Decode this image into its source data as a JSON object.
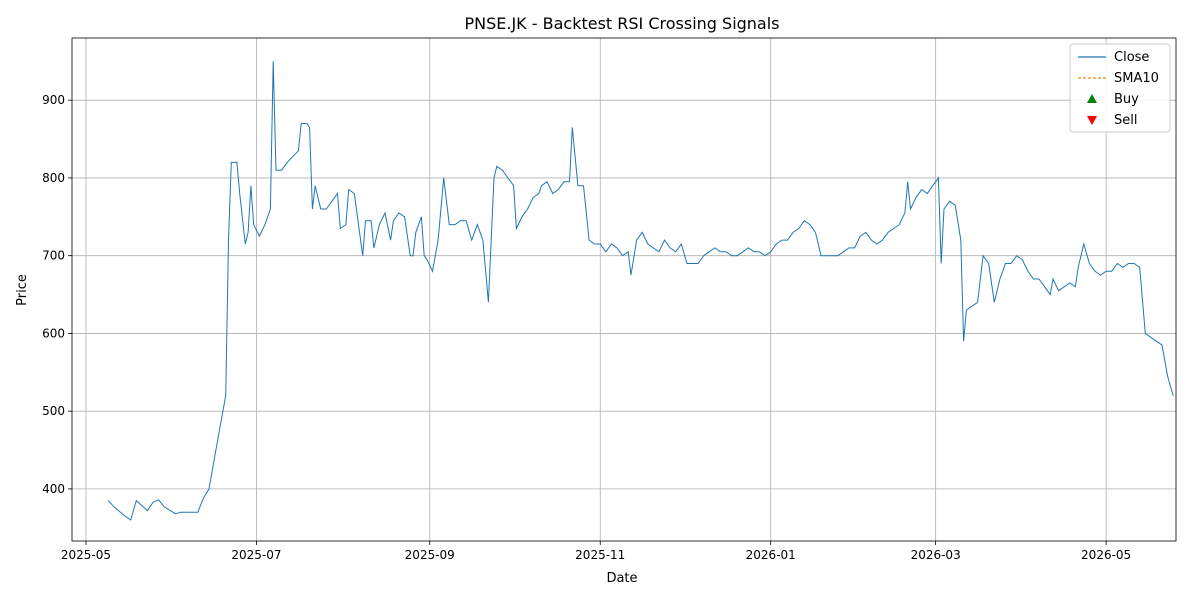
{
  "chart_data": {
    "type": "line",
    "title": "PNSE.JK - Backtest RSI Crossing Signals",
    "xlabel": "Date",
    "ylabel": "Price",
    "xlim": [
      "2025-04-26",
      "2026-05-26"
    ],
    "ylim": [
      333,
      980
    ],
    "yticks": [
      400,
      500,
      600,
      700,
      800,
      900
    ],
    "xticks": [
      "2025-05-01",
      "2025-07-01",
      "2025-09-01",
      "2025-11-01",
      "2026-01-01",
      "2026-03-01",
      "2026-05-01"
    ],
    "xtick_labels": [
      "2025-05",
      "2025-07",
      "2025-09",
      "2025-11",
      "2026-01",
      "2026-03",
      "2026-05"
    ],
    "grid": true,
    "legend": {
      "position": "top-right",
      "entries": [
        {
          "name": "Close",
          "kind": "line",
          "color": "#1f77b4"
        },
        {
          "name": "SMA10",
          "kind": "dashed",
          "color": "#ff7f0e"
        },
        {
          "name": "Buy",
          "kind": "marker-up",
          "color": "#008000"
        },
        {
          "name": "Sell",
          "kind": "marker-down",
          "color": "#ff0000"
        }
      ]
    },
    "series": [
      {
        "name": "Close",
        "color": "#1f77b4",
        "points": [
          [
            "2025-05-09",
            385
          ],
          [
            "2025-05-11",
            377
          ],
          [
            "2025-05-15",
            365
          ],
          [
            "2025-05-17",
            360
          ],
          [
            "2025-05-19",
            385
          ],
          [
            "2025-05-23",
            372
          ],
          [
            "2025-05-25",
            383
          ],
          [
            "2025-05-27",
            386
          ],
          [
            "2025-05-29",
            377
          ],
          [
            "2025-06-02",
            368
          ],
          [
            "2025-06-04",
            370
          ],
          [
            "2025-06-06",
            370
          ],
          [
            "2025-06-08",
            370
          ],
          [
            "2025-06-10",
            370
          ],
          [
            "2025-06-12",
            388
          ],
          [
            "2025-06-14",
            400
          ],
          [
            "2025-06-16",
            440
          ],
          [
            "2025-06-18",
            480
          ],
          [
            "2025-06-20",
            520
          ],
          [
            "2025-06-21",
            720
          ],
          [
            "2025-06-22",
            820
          ],
          [
            "2025-06-24",
            820
          ],
          [
            "2025-06-25",
            780
          ],
          [
            "2025-06-27",
            715
          ],
          [
            "2025-06-28",
            730
          ],
          [
            "2025-06-29",
            790
          ],
          [
            "2025-06-30",
            740
          ],
          [
            "2025-07-02",
            725
          ],
          [
            "2025-07-04",
            740
          ],
          [
            "2025-07-06",
            760
          ],
          [
            "2025-07-07",
            950
          ],
          [
            "2025-07-08",
            810
          ],
          [
            "2025-07-10",
            810
          ],
          [
            "2025-07-12",
            820
          ],
          [
            "2025-07-16",
            835
          ],
          [
            "2025-07-17",
            870
          ],
          [
            "2025-07-19",
            870
          ],
          [
            "2025-07-20",
            865
          ],
          [
            "2025-07-21",
            760
          ],
          [
            "2025-07-22",
            790
          ],
          [
            "2025-07-24",
            760
          ],
          [
            "2025-07-26",
            760
          ],
          [
            "2025-07-28",
            770
          ],
          [
            "2025-07-30",
            780
          ],
          [
            "2025-07-31",
            735
          ],
          [
            "2025-08-02",
            740
          ],
          [
            "2025-08-03",
            785
          ],
          [
            "2025-08-05",
            780
          ],
          [
            "2025-08-08",
            700
          ],
          [
            "2025-08-09",
            745
          ],
          [
            "2025-08-11",
            745
          ],
          [
            "2025-08-12",
            710
          ],
          [
            "2025-08-14",
            740
          ],
          [
            "2025-08-16",
            755
          ],
          [
            "2025-08-18",
            720
          ],
          [
            "2025-08-19",
            745
          ],
          [
            "2025-08-21",
            755
          ],
          [
            "2025-08-23",
            750
          ],
          [
            "2025-08-25",
            700
          ],
          [
            "2025-08-26",
            700
          ],
          [
            "2025-08-27",
            730
          ],
          [
            "2025-08-29",
            750
          ],
          [
            "2025-08-30",
            700
          ],
          [
            "2025-08-31",
            695
          ],
          [
            "2025-09-02",
            680
          ],
          [
            "2025-09-04",
            720
          ],
          [
            "2025-09-06",
            800
          ],
          [
            "2025-09-08",
            740
          ],
          [
            "2025-09-10",
            740
          ],
          [
            "2025-09-12",
            745
          ],
          [
            "2025-09-14",
            745
          ],
          [
            "2025-09-16",
            720
          ],
          [
            "2025-09-18",
            740
          ],
          [
            "2025-09-20",
            720
          ],
          [
            "2025-09-22",
            640
          ],
          [
            "2025-09-24",
            800
          ],
          [
            "2025-09-25",
            815
          ],
          [
            "2025-09-27",
            810
          ],
          [
            "2025-09-29",
            800
          ],
          [
            "2025-09-31",
            790
          ],
          [
            "2025-10-02",
            735
          ],
          [
            "2025-10-04",
            750
          ],
          [
            "2025-10-06",
            760
          ],
          [
            "2025-10-08",
            775
          ],
          [
            "2025-10-10",
            780
          ],
          [
            "2025-10-11",
            790
          ],
          [
            "2025-10-13",
            795
          ],
          [
            "2025-10-15",
            780
          ],
          [
            "2025-10-17",
            785
          ],
          [
            "2025-10-19",
            795
          ],
          [
            "2025-10-21",
            795
          ],
          [
            "2025-10-22",
            865
          ],
          [
            "2025-10-24",
            790
          ],
          [
            "2025-10-26",
            790
          ],
          [
            "2025-10-28",
            720
          ],
          [
            "2025-10-30",
            715
          ],
          [
            "2025-11-01",
            715
          ],
          [
            "2025-11-03",
            705
          ],
          [
            "2025-11-05",
            715
          ],
          [
            "2025-11-07",
            710
          ],
          [
            "2025-11-09",
            700
          ],
          [
            "2025-11-11",
            705
          ],
          [
            "2025-11-12",
            675
          ],
          [
            "2025-11-14",
            720
          ],
          [
            "2025-11-16",
            730
          ],
          [
            "2025-11-18",
            715
          ],
          [
            "2025-11-20",
            710
          ],
          [
            "2025-11-22",
            705
          ],
          [
            "2025-11-24",
            720
          ],
          [
            "2025-11-26",
            710
          ],
          [
            "2025-11-28",
            705
          ],
          [
            "2025-11-30",
            715
          ],
          [
            "2025-12-02",
            690
          ],
          [
            "2025-12-04",
            690
          ],
          [
            "2025-12-06",
            690
          ],
          [
            "2025-12-08",
            700
          ],
          [
            "2025-12-10",
            705
          ],
          [
            "2025-12-12",
            710
          ],
          [
            "2025-12-14",
            705
          ],
          [
            "2025-12-16",
            705
          ],
          [
            "2025-12-18",
            700
          ],
          [
            "2025-12-20",
            700
          ],
          [
            "2025-12-22",
            705
          ],
          [
            "2025-12-24",
            710
          ],
          [
            "2025-12-26",
            705
          ],
          [
            "2025-12-28",
            705
          ],
          [
            "2025-12-30",
            700
          ],
          [
            "2026-01-01",
            705
          ],
          [
            "2026-01-03",
            715
          ],
          [
            "2026-01-05",
            720
          ],
          [
            "2026-01-07",
            720
          ],
          [
            "2026-01-09",
            730
          ],
          [
            "2026-01-11",
            735
          ],
          [
            "2026-01-13",
            745
          ],
          [
            "2026-01-15",
            740
          ],
          [
            "2026-01-17",
            730
          ],
          [
            "2026-01-19",
            700
          ],
          [
            "2026-01-21",
            700
          ],
          [
            "2026-01-23",
            700
          ],
          [
            "2026-01-25",
            700
          ],
          [
            "2026-01-27",
            705
          ],
          [
            "2026-01-29",
            710
          ],
          [
            "2026-01-31",
            710
          ],
          [
            "2026-02-02",
            725
          ],
          [
            "2026-02-04",
            730
          ],
          [
            "2026-02-06",
            720
          ],
          [
            "2026-02-08",
            715
          ],
          [
            "2026-02-10",
            720
          ],
          [
            "2026-02-12",
            730
          ],
          [
            "2026-02-14",
            735
          ],
          [
            "2026-02-16",
            740
          ],
          [
            "2026-02-18",
            755
          ],
          [
            "2026-02-19",
            795
          ],
          [
            "2026-02-20",
            760
          ],
          [
            "2026-02-22",
            775
          ],
          [
            "2026-02-24",
            785
          ],
          [
            "2026-02-26",
            780
          ],
          [
            "2026-02-28",
            790
          ],
          [
            "2026-03-02",
            800
          ],
          [
            "2026-03-03",
            690
          ],
          [
            "2026-03-04",
            760
          ],
          [
            "2026-03-06",
            770
          ],
          [
            "2026-03-08",
            765
          ],
          [
            "2026-03-10",
            720
          ],
          [
            "2026-03-11",
            590
          ],
          [
            "2026-03-12",
            630
          ],
          [
            "2026-03-14",
            635
          ],
          [
            "2026-03-16",
            640
          ],
          [
            "2026-03-18",
            700
          ],
          [
            "2026-03-20",
            690
          ],
          [
            "2026-03-22",
            640
          ],
          [
            "2026-03-24",
            670
          ],
          [
            "2026-03-26",
            690
          ],
          [
            "2026-03-28",
            690
          ],
          [
            "2026-03-30",
            700
          ],
          [
            "2026-04-01",
            695
          ],
          [
            "2026-04-03",
            680
          ],
          [
            "2026-04-05",
            670
          ],
          [
            "2026-04-07",
            670
          ],
          [
            "2026-04-09",
            660
          ],
          [
            "2026-04-11",
            650
          ],
          [
            "2026-04-12",
            670
          ],
          [
            "2026-04-14",
            655
          ],
          [
            "2026-04-16",
            660
          ],
          [
            "2026-04-18",
            665
          ],
          [
            "2026-04-20",
            660
          ],
          [
            "2026-04-21",
            685
          ],
          [
            "2026-04-23",
            715
          ],
          [
            "2026-04-25",
            690
          ],
          [
            "2026-04-27",
            680
          ],
          [
            "2026-04-29",
            675
          ],
          [
            "2026-05-01",
            680
          ],
          [
            "2026-05-03",
            680
          ],
          [
            "2026-05-05",
            690
          ],
          [
            "2026-05-07",
            685
          ],
          [
            "2026-05-09",
            690
          ],
          [
            "2026-05-11",
            690
          ],
          [
            "2026-05-13",
            685
          ],
          [
            "2026-05-15",
            600
          ],
          [
            "2026-05-17",
            595
          ],
          [
            "2026-05-19",
            590
          ],
          [
            "2026-05-21",
            585
          ],
          [
            "2026-05-23",
            545
          ],
          [
            "2026-05-25",
            520
          ]
        ]
      }
    ]
  }
}
